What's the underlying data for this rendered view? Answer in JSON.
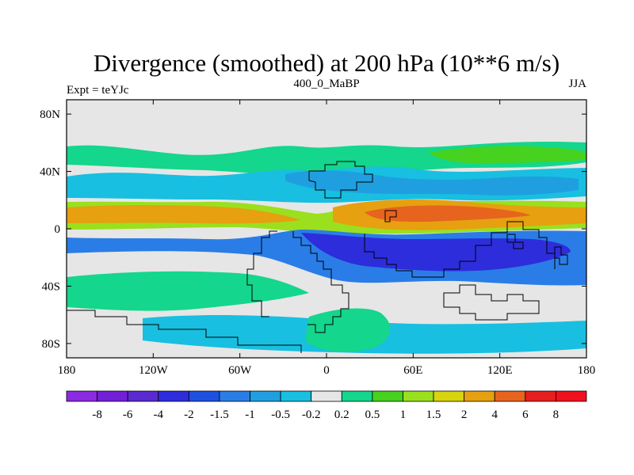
{
  "chart_data": {
    "type": "heatmap",
    "title": "Divergence (smoothed) at 200 hPa (10**6 m/s)",
    "left_label": "Expt = teYJc",
    "center_label": "400_0_MaBP",
    "right_label": "JJA",
    "xlim": [
      -180,
      180
    ],
    "ylim": [
      -90,
      90
    ],
    "x_ticks": [
      {
        "value": -180,
        "label": "180"
      },
      {
        "value": -120,
        "label": "120W"
      },
      {
        "value": -60,
        "label": "60W"
      },
      {
        "value": 0,
        "label": "0"
      },
      {
        "value": 60,
        "label": "60E"
      },
      {
        "value": 120,
        "label": "120E"
      },
      {
        "value": 180,
        "label": "180"
      }
    ],
    "y_ticks": [
      {
        "value": 80,
        "label": "80N"
      },
      {
        "value": 40,
        "label": "40N"
      },
      {
        "value": 0,
        "label": "0"
      },
      {
        "value": -40,
        "label": "40S"
      },
      {
        "value": -80,
        "label": "80S"
      }
    ],
    "colorbar": {
      "levels": [
        "-8",
        "-6",
        "-4",
        "-2",
        "-1.5",
        "-1",
        "-0.5",
        "-0.2",
        "0.2",
        "0.5",
        "1",
        "1.5",
        "2",
        "4",
        "6",
        "8"
      ],
      "colors": [
        "#8a2be2",
        "#7220d8",
        "#5a2ad0",
        "#2d2ddc",
        "#1e50e0",
        "#2a7de6",
        "#1f9fe0",
        "#18bfe0",
        "#e6e6e6",
        "#14d68c",
        "#46d21e",
        "#9ae01e",
        "#d8d40e",
        "#e6a010",
        "#e6641e",
        "#e61e1e",
        "#f0101e"
      ]
    },
    "fields": [
      {
        "lat": 0,
        "lon_start": -180,
        "lon_end": 180,
        "lat_width": 10,
        "value": 1.8,
        "note": "northern equatorial divergence band"
      },
      {
        "lat": 8,
        "lon_start": 20,
        "lon_end": 140,
        "lat_width": 8,
        "value": 5,
        "note": "strong divergence over monsoon region"
      },
      {
        "lat": -15,
        "lon_start": -70,
        "lon_end": 180,
        "lat_width": 16,
        "value": -2,
        "note": "southern tropical convergence band"
      },
      {
        "lat": 28,
        "lon_start": -180,
        "lon_end": 180,
        "lat_width": 10,
        "value": -1,
        "note": "subtropical convergence band"
      },
      {
        "lat": 40,
        "lon_start": -180,
        "lon_end": 180,
        "lat_width": 8,
        "value": 0.5,
        "note": "midlatitude divergence band"
      }
    ]
  }
}
